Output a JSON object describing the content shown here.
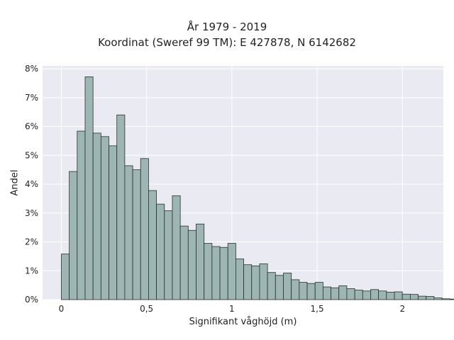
{
  "chart_data": {
    "type": "bar",
    "title": "År 1979 - 2019",
    "subtitle": "Koordinat (Sweref 99 TM): E 427878, N 6142682",
    "xlabel": "Signifikant våghöjd (m)",
    "ylabel": "Andel",
    "x_ticks": [
      0,
      0.5,
      1,
      1.5,
      2
    ],
    "x_tick_labels": [
      "0",
      "0,5",
      "1",
      "1,5",
      "2"
    ],
    "y_ticks": [
      0,
      1,
      2,
      3,
      4,
      5,
      6,
      7,
      8
    ],
    "y_tick_labels": [
      "0%",
      "1%",
      "2%",
      "3%",
      "4%",
      "5%",
      "6%",
      "7%",
      "8%"
    ],
    "xlim": [
      -0.11,
      2.24
    ],
    "ylim": [
      0,
      8.1
    ],
    "bin_width": 0.0465,
    "bin_start": 0.0,
    "values": [
      1.58,
      4.44,
      5.84,
      7.72,
      5.77,
      5.65,
      5.33,
      6.4,
      4.64,
      4.5,
      4.89,
      3.78,
      3.31,
      3.08,
      3.6,
      2.55,
      2.4,
      2.62,
      1.95,
      1.84,
      1.81,
      1.95,
      1.41,
      1.21,
      1.17,
      1.24,
      0.94,
      0.84,
      0.92,
      0.69,
      0.6,
      0.56,
      0.6,
      0.44,
      0.41,
      0.48,
      0.38,
      0.33,
      0.3,
      0.35,
      0.3,
      0.26,
      0.27,
      0.19,
      0.18,
      0.12,
      0.11,
      0.06,
      0.03,
      0.02
    ],
    "bar_color": "#9db5b3",
    "edge_color": "#2b2f2f",
    "grid": true,
    "background": "#eaeaf2",
    "legend": "none"
  }
}
